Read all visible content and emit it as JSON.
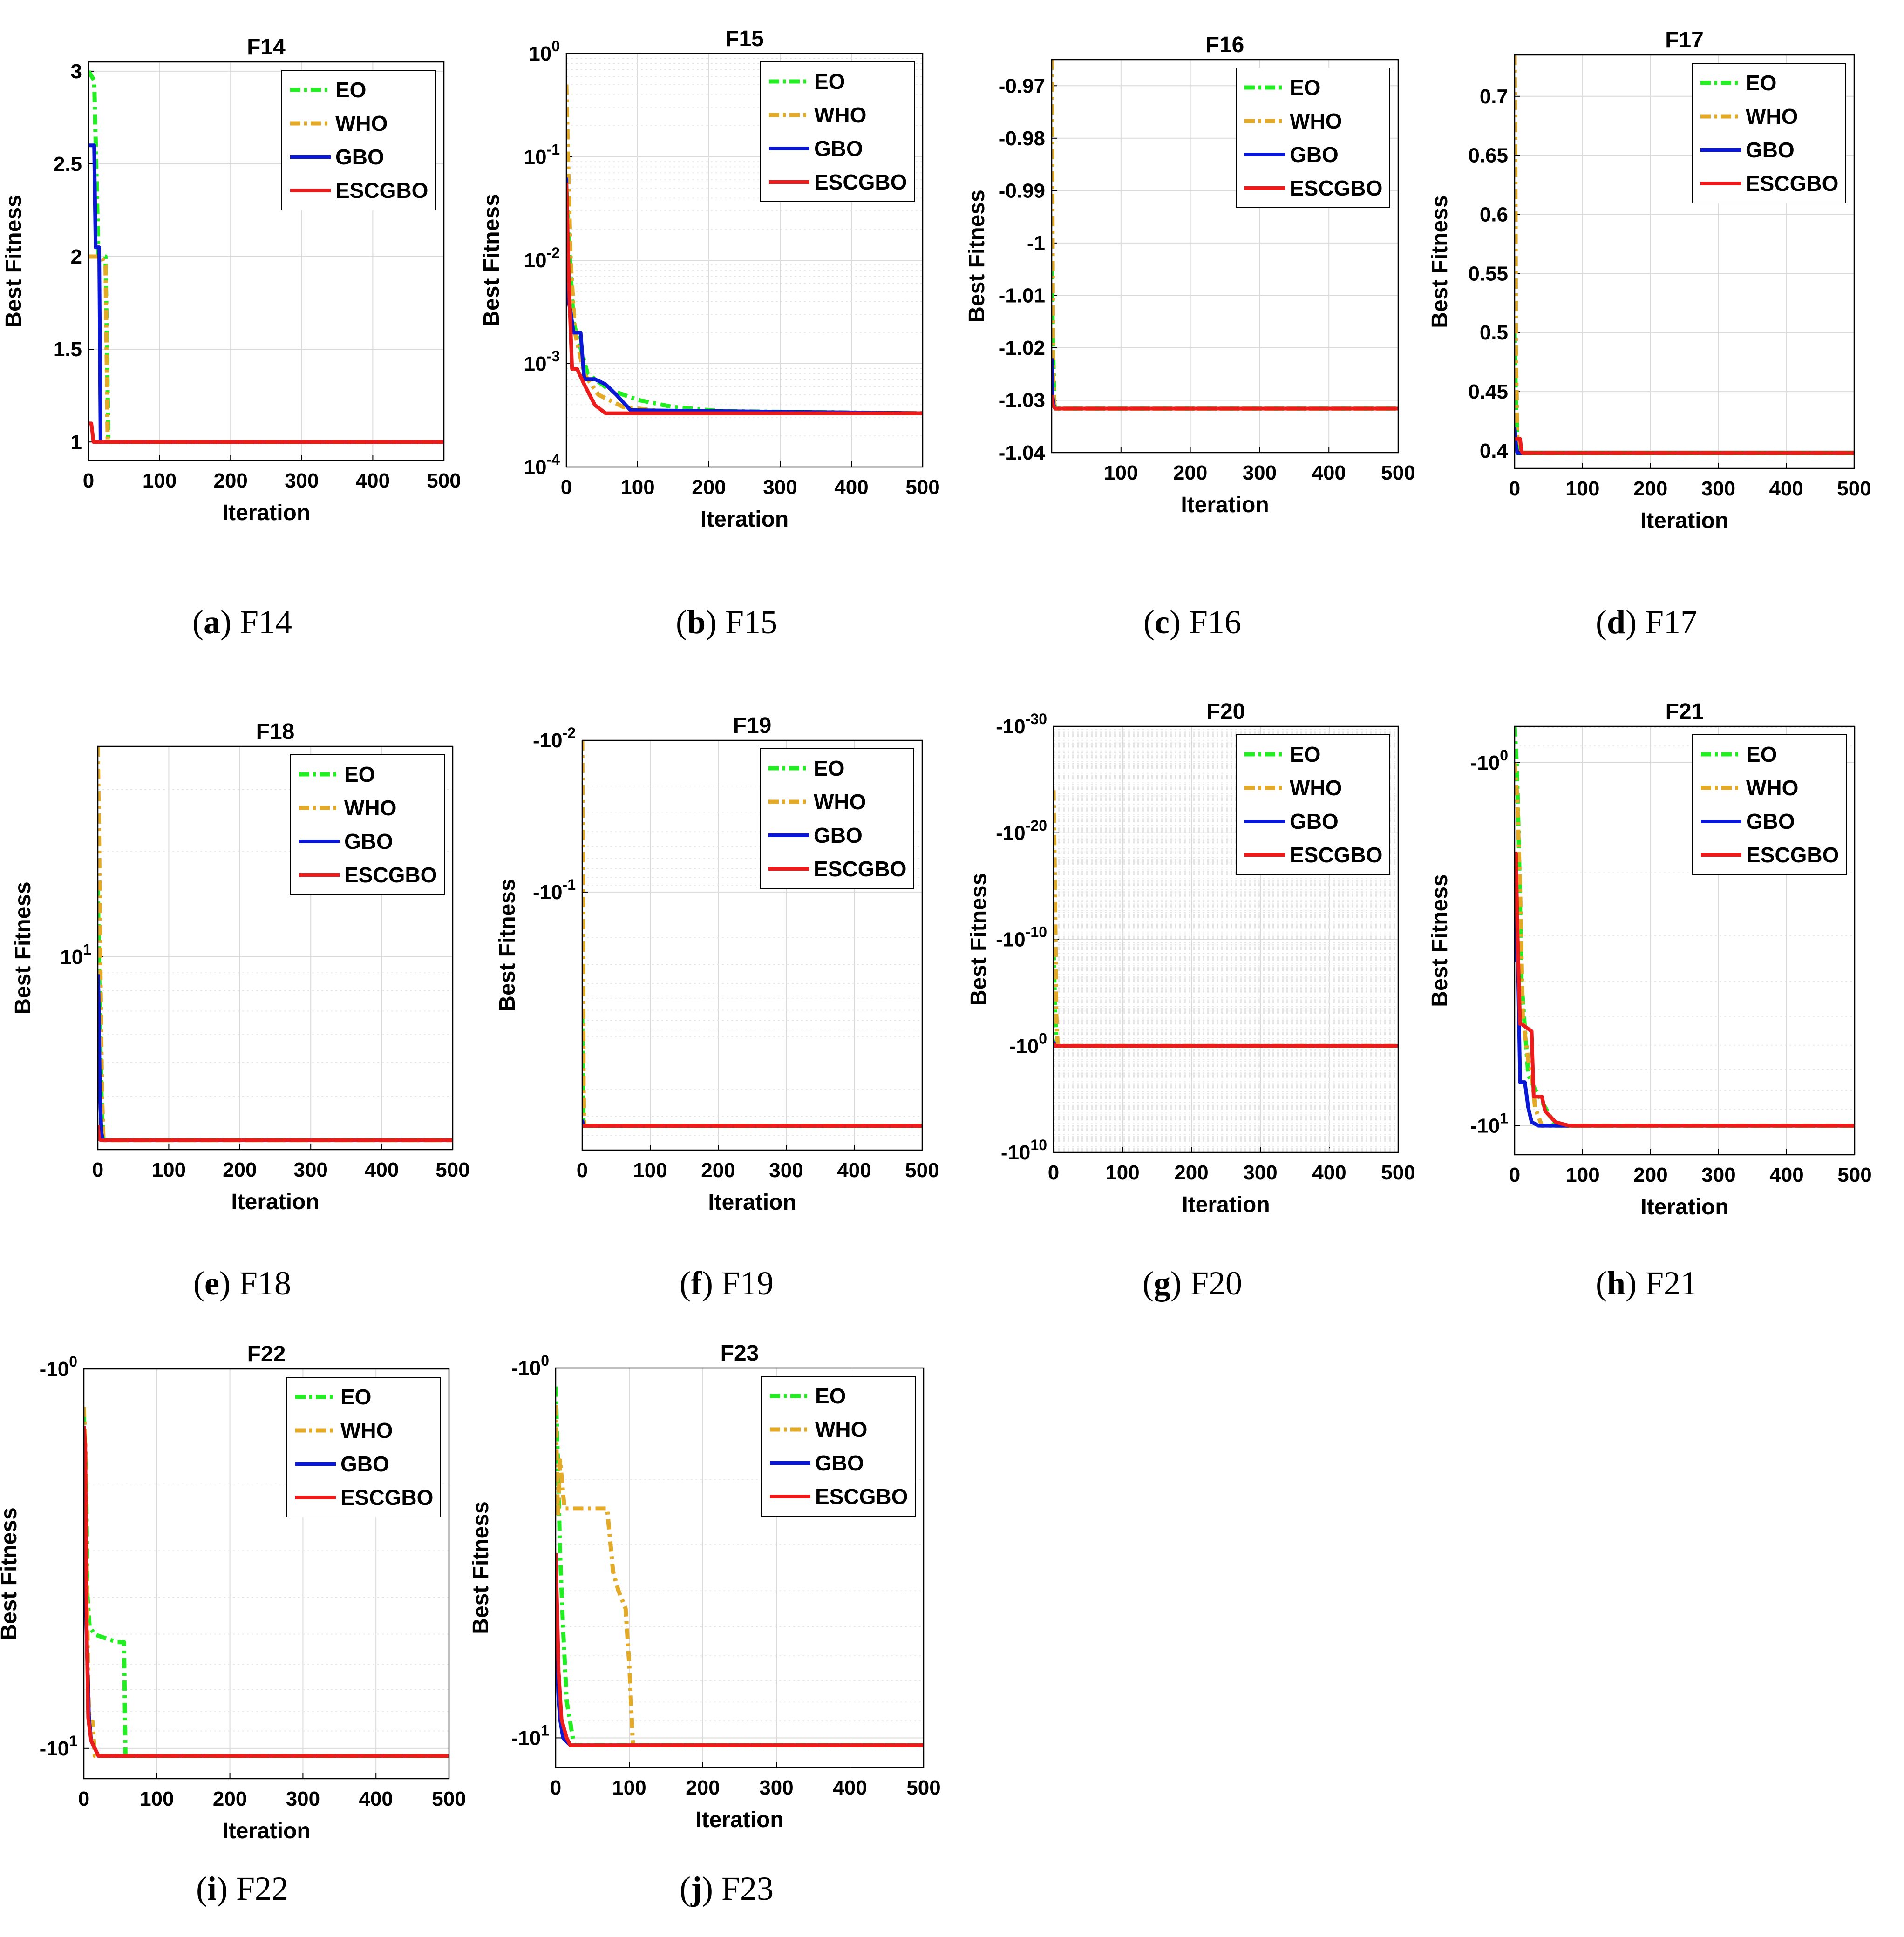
{
  "colors": {
    "EO": "#22ee22",
    "WHO": "#e3aa28",
    "GBO": "#0a18d6",
    "ESCGBO": "#ec1c1c"
  },
  "legend": [
    "EO",
    "WHO",
    "GBO",
    "ESCGBO"
  ],
  "xlabel": "Iteration",
  "ylabel": "Best Fitness",
  "chart_data": [
    {
      "id": "F14",
      "type": "line",
      "title": "F14",
      "caption_letter": "a",
      "caption_text": "F14",
      "xlim": [
        0,
        500
      ],
      "xticks": [
        "0",
        "100",
        "200",
        "300",
        "400",
        "500"
      ],
      "ylim": [
        0.9,
        3.05
      ],
      "yscale": "linear",
      "yticks": [
        {
          "v": 1,
          "label": "1"
        },
        {
          "v": 1.5,
          "label": "1.5"
        },
        {
          "v": 2,
          "label": "2"
        },
        {
          "v": 2.5,
          "label": "2.5"
        },
        {
          "v": 3,
          "label": "3"
        }
      ],
      "series": [
        {
          "name": "EO",
          "x": [
            0,
            8,
            14,
            24,
            28,
            500
          ],
          "y": [
            3.0,
            2.95,
            2.0,
            2.0,
            1.0,
            1.0
          ]
        },
        {
          "name": "WHO",
          "x": [
            0,
            18,
            24,
            27,
            500
          ],
          "y": [
            2.0,
            2.0,
            1.95,
            1.0,
            1.0
          ]
        },
        {
          "name": "GBO",
          "x": [
            0,
            8,
            10,
            15,
            17,
            500
          ],
          "y": [
            2.6,
            2.6,
            2.05,
            2.05,
            1.0,
            1.0
          ]
        },
        {
          "name": "ESCGBO",
          "x": [
            0,
            4,
            7,
            500
          ],
          "y": [
            1.1,
            1.1,
            1.0,
            1.0
          ]
        }
      ]
    },
    {
      "id": "F15",
      "type": "line",
      "title": "F15",
      "caption_letter": "b",
      "caption_text": "F15",
      "xlim": [
        0,
        500
      ],
      "xticks": [
        "0",
        "100",
        "200",
        "300",
        "400",
        "500"
      ],
      "ylim": [
        -4,
        0
      ],
      "yscale": "log10",
      "yticks": [
        {
          "v": 0,
          "label": "10^0"
        },
        {
          "v": -1,
          "label": "10^-1"
        },
        {
          "v": -2,
          "label": "10^-2"
        },
        {
          "v": -3,
          "label": "10^-3"
        },
        {
          "v": -4,
          "label": "10^-4"
        }
      ],
      "series": [
        {
          "name": "EO",
          "x": [
            0,
            5,
            10,
            30,
            60,
            100,
            150,
            220,
            500
          ],
          "y": [
            -1.3,
            -2.0,
            -2.6,
            -3.1,
            -3.25,
            -3.35,
            -3.42,
            -3.46,
            -3.48
          ]
        },
        {
          "name": "WHO",
          "x": [
            0,
            3,
            6,
            12,
            25,
            45,
            80,
            150,
            500
          ],
          "y": [
            -0.3,
            -1.2,
            -2.0,
            -2.7,
            -3.1,
            -3.3,
            -3.42,
            -3.47,
            -3.48
          ]
        },
        {
          "name": "GBO",
          "x": [
            0,
            3,
            6,
            10,
            20,
            25,
            40,
            55,
            70,
            90,
            500
          ],
          "y": [
            -1.2,
            -2.4,
            -2.5,
            -2.7,
            -2.7,
            -3.15,
            -3.15,
            -3.2,
            -3.3,
            -3.45,
            -3.48
          ]
        },
        {
          "name": "ESCGBO",
          "x": [
            0,
            4,
            8,
            15,
            25,
            40,
            55,
            500
          ],
          "y": [
            -1.25,
            -2.3,
            -3.05,
            -3.05,
            -3.2,
            -3.4,
            -3.48,
            -3.48
          ]
        }
      ]
    },
    {
      "id": "F16",
      "type": "line",
      "title": "F16",
      "caption_letter": "c",
      "caption_text": "F16",
      "xlim": [
        0,
        500
      ],
      "xticks": [
        "",
        "100",
        "200",
        "300",
        "400",
        "500"
      ],
      "ylim": [
        -1.04,
        -0.965
      ],
      "yscale": "linear",
      "yticks": [
        {
          "v": -0.97,
          "label": "-0.97"
        },
        {
          "v": -0.98,
          "label": "-0.98"
        },
        {
          "v": -0.99,
          "label": "-0.99"
        },
        {
          "v": -1.0,
          "label": "-1"
        },
        {
          "v": -1.01,
          "label": "-1.01"
        },
        {
          "v": -1.02,
          "label": "-1.02"
        },
        {
          "v": -1.03,
          "label": "-1.03"
        },
        {
          "v": -1.04,
          "label": "-1.04"
        }
      ],
      "series": [
        {
          "name": "EO",
          "x": [
            0,
            2,
            4,
            6,
            500
          ],
          "y": [
            -1.005,
            -1.02,
            -1.031,
            -1.0316,
            -1.0316
          ]
        },
        {
          "name": "WHO",
          "x": [
            0,
            1,
            2,
            4,
            500
          ],
          "y": [
            -0.965,
            -0.99,
            -1.025,
            -1.0316,
            -1.0316
          ]
        },
        {
          "name": "GBO",
          "x": [
            0,
            1,
            3,
            5,
            500
          ],
          "y": [
            -1.022,
            -1.029,
            -1.031,
            -1.0316,
            -1.0316
          ]
        },
        {
          "name": "ESCGBO",
          "x": [
            0,
            2,
            5,
            500
          ],
          "y": [
            -1.029,
            -1.031,
            -1.0316,
            -1.0316
          ]
        }
      ]
    },
    {
      "id": "F17",
      "type": "line",
      "title": "F17",
      "caption_letter": "d",
      "caption_text": "F17",
      "xlim": [
        0,
        500
      ],
      "xticks": [
        "0",
        "100",
        "200",
        "300",
        "400",
        "500"
      ],
      "ylim": [
        0.385,
        0.735
      ],
      "yscale": "linear",
      "yticks": [
        {
          "v": 0.4,
          "label": "0.4"
        },
        {
          "v": 0.45,
          "label": "0.45"
        },
        {
          "v": 0.5,
          "label": "0.5"
        },
        {
          "v": 0.55,
          "label": "0.55"
        },
        {
          "v": 0.6,
          "label": "0.6"
        },
        {
          "v": 0.65,
          "label": "0.65"
        },
        {
          "v": 0.7,
          "label": "0.7"
        }
      ],
      "series": [
        {
          "name": "EO",
          "x": [
            0,
            2,
            4,
            6,
            500
          ],
          "y": [
            0.5,
            0.44,
            0.41,
            0.398,
            0.398
          ]
        },
        {
          "name": "WHO",
          "x": [
            0,
            1,
            2,
            4,
            6,
            500
          ],
          "y": [
            0.735,
            0.65,
            0.48,
            0.41,
            0.398,
            0.398
          ]
        },
        {
          "name": "GBO",
          "x": [
            0,
            2,
            4,
            500
          ],
          "y": [
            0.42,
            0.405,
            0.398,
            0.398
          ]
        },
        {
          "name": "ESCGBO",
          "x": [
            0,
            8,
            10,
            12,
            500
          ],
          "y": [
            0.41,
            0.41,
            0.4,
            0.398,
            0.398
          ]
        }
      ]
    },
    {
      "id": "F18",
      "type": "line",
      "title": "F18",
      "caption_letter": "e",
      "caption_text": "F18",
      "xlim": [
        0,
        500
      ],
      "xticks": [
        "0",
        "100",
        "200",
        "300",
        "400",
        "500"
      ],
      "ylim": [
        0.45,
        1.6
      ],
      "yscale": "log10",
      "yticks": [
        {
          "v": 1,
          "label": "10^1"
        }
      ],
      "series": [
        {
          "name": "EO",
          "x": [
            0,
            2,
            4,
            6,
            8,
            500
          ],
          "y": [
            1.2,
            0.95,
            0.7,
            0.55,
            0.477,
            0.477
          ]
        },
        {
          "name": "WHO",
          "x": [
            0,
            2,
            4,
            6,
            8,
            500
          ],
          "y": [
            1.6,
            1.3,
            0.9,
            0.6,
            0.477,
            0.477
          ]
        },
        {
          "name": "GBO",
          "x": [
            0,
            1,
            3,
            5,
            7,
            500
          ],
          "y": [
            0.95,
            0.9,
            0.6,
            0.5,
            0.477,
            0.477
          ]
        },
        {
          "name": "ESCGBO",
          "x": [
            0,
            2,
            4,
            500
          ],
          "y": [
            0.52,
            0.48,
            0.477,
            0.477
          ]
        }
      ]
    },
    {
      "id": "F19",
      "type": "line",
      "title": "F19",
      "caption_letter": "f",
      "caption_text": "F19",
      "xlim": [
        0,
        500
      ],
      "xticks": [
        "0",
        "100",
        "200",
        "300",
        "400",
        "500"
      ],
      "ylim": [
        -2,
        0.7
      ],
      "yscale": "log10-neg",
      "yticks": [
        {
          "v": -2,
          "label": "-10^-2"
        },
        {
          "v": -1,
          "label": "-10^-1"
        }
      ],
      "series": [
        {
          "name": "EO",
          "x": [
            0,
            1,
            2,
            500
          ],
          "y": [
            -0.2,
            0.3,
            0.54,
            0.54
          ]
        },
        {
          "name": "WHO",
          "x": [
            0,
            1,
            2,
            3,
            500
          ],
          "y": [
            -2,
            -1.2,
            0.3,
            0.54,
            0.54
          ]
        },
        {
          "name": "GBO",
          "x": [
            0,
            1,
            2,
            500
          ],
          "y": [
            0.5,
            0.53,
            0.54,
            0.54
          ]
        },
        {
          "name": "ESCGBO",
          "x": [
            0,
            2,
            500
          ],
          "y": [
            0.54,
            0.54,
            0.54
          ]
        }
      ]
    },
    {
      "id": "F20",
      "type": "line",
      "title": "F20",
      "caption_letter": "g",
      "caption_text": "F20",
      "xlim": [
        0,
        500
      ],
      "xticks": [
        "0",
        "100",
        "200",
        "300",
        "400",
        "500"
      ],
      "ylim": [
        -30,
        10
      ],
      "yscale": "log10-neg",
      "yticks": [
        {
          "v": -30,
          "label": "-10^-30"
        },
        {
          "v": -20,
          "label": "-10^-20"
        },
        {
          "v": -10,
          "label": "-10^-10"
        },
        {
          "v": 0,
          "label": "-10^0"
        },
        {
          "v": 10,
          "label": "-10^10"
        }
      ],
      "series": [
        {
          "name": "EO",
          "x": [
            0,
            2,
            4,
            6,
            500
          ],
          "y": [
            -9,
            -4,
            -0.5,
            0,
            0
          ]
        },
        {
          "name": "WHO",
          "x": [
            0,
            2,
            4,
            6,
            500
          ],
          "y": [
            -24,
            -15,
            -3,
            0,
            0
          ]
        },
        {
          "name": "GBO",
          "x": [
            0,
            2,
            500
          ],
          "y": [
            -0.4,
            0,
            0
          ]
        },
        {
          "name": "ESCGBO",
          "x": [
            0,
            3,
            500
          ],
          "y": [
            -0.2,
            0,
            0
          ]
        }
      ]
    },
    {
      "id": "F21",
      "type": "line",
      "title": "F21",
      "caption_letter": "h",
      "caption_text": "F21",
      "xlim": [
        0,
        500
      ],
      "xticks": [
        "0",
        "100",
        "200",
        "300",
        "400",
        "500"
      ],
      "ylim": [
        -0.1,
        1.08
      ],
      "yscale": "log10-neg",
      "yticks": [
        {
          "v": 0,
          "label": "-10^0"
        },
        {
          "v": 1,
          "label": "-10^1"
        }
      ],
      "series": [
        {
          "name": "EO",
          "x": [
            0,
            3,
            6,
            10,
            20,
            30,
            45,
            60,
            500
          ],
          "y": [
            -0.1,
            0.0,
            0.2,
            0.6,
            0.86,
            0.9,
            0.95,
            1.0,
            1.0
          ]
        },
        {
          "name": "WHO",
          "x": [
            0,
            4,
            8,
            12,
            20,
            25,
            30,
            40,
            500
          ],
          "y": [
            0.0,
            0.1,
            0.35,
            0.7,
            0.82,
            0.85,
            0.95,
            1.0,
            1.0
          ]
        },
        {
          "name": "GBO",
          "x": [
            0,
            2,
            5,
            8,
            15,
            20,
            25,
            35,
            500
          ],
          "y": [
            0.55,
            0.35,
            0.55,
            0.88,
            0.88,
            0.95,
            0.99,
            1.0,
            1.0
          ]
        },
        {
          "name": "ESCGBO",
          "x": [
            0,
            2,
            4,
            8,
            10,
            25,
            28,
            40,
            45,
            60,
            80,
            500
          ],
          "y": [
            0.35,
            0.25,
            0.45,
            0.72,
            0.72,
            0.74,
            0.92,
            0.92,
            0.96,
            0.99,
            1.0,
            1.0
          ]
        }
      ]
    },
    {
      "id": "F22",
      "type": "line",
      "title": "F22",
      "caption_letter": "i",
      "caption_text": "F22",
      "xlim": [
        0,
        500
      ],
      "xticks": [
        "0",
        "100",
        "200",
        "300",
        "400",
        "500"
      ],
      "ylim": [
        0,
        1.08
      ],
      "yscale": "log10-neg",
      "yticks": [
        {
          "v": 0,
          "label": "-10^0"
        },
        {
          "v": 1,
          "label": "-10^1"
        }
      ],
      "series": [
        {
          "name": "EO",
          "x": [
            0,
            3,
            5,
            8,
            15,
            30,
            45,
            55,
            57,
            500
          ],
          "y": [
            0.12,
            0.25,
            0.6,
            0.68,
            0.7,
            0.71,
            0.72,
            0.72,
            1.02,
            1.02
          ]
        },
        {
          "name": "WHO",
          "x": [
            0,
            2,
            4,
            6,
            8,
            12,
            15,
            500
          ],
          "y": [
            0.1,
            0.2,
            0.55,
            0.85,
            0.93,
            0.93,
            1.02,
            1.02
          ]
        },
        {
          "name": "GBO",
          "x": [
            0,
            2,
            4,
            7,
            10,
            20,
            500
          ],
          "y": [
            0.3,
            0.55,
            0.72,
            0.92,
            0.98,
            1.02,
            1.02
          ]
        },
        {
          "name": "ESCGBO",
          "x": [
            0,
            2,
            4,
            6,
            8,
            10,
            20,
            500
          ],
          "y": [
            0.15,
            0.2,
            0.7,
            0.92,
            0.95,
            0.98,
            1.02,
            1.02
          ]
        }
      ]
    },
    {
      "id": "F23",
      "type": "line",
      "title": "F23",
      "caption_letter": "j",
      "caption_text": "F23",
      "xlim": [
        0,
        500
      ],
      "xticks": [
        "0",
        "100",
        "200",
        "300",
        "400",
        "500"
      ],
      "ylim": [
        0,
        1.08
      ],
      "yscale": "log10-neg",
      "yticks": [
        {
          "v": 0,
          "label": "-10^0"
        },
        {
          "v": 1,
          "label": "-10^1"
        }
      ],
      "series": [
        {
          "name": "EO",
          "x": [
            0,
            3,
            6,
            10,
            15,
            25,
            500
          ],
          "y": [
            0.05,
            0.25,
            0.5,
            0.7,
            0.9,
            1.02,
            1.02
          ]
        },
        {
          "name": "WHO",
          "x": [
            0,
            3,
            6,
            12,
            70,
            78,
            85,
            95,
            100,
            105,
            500
          ],
          "y": [
            0.1,
            0.4,
            0.25,
            0.38,
            0.38,
            0.55,
            0.6,
            0.65,
            0.8,
            1.02,
            1.02
          ]
        },
        {
          "name": "GBO",
          "x": [
            0,
            2,
            4,
            6,
            10,
            20,
            500
          ],
          "y": [
            0.6,
            0.8,
            0.9,
            0.95,
            1.0,
            1.02,
            1.02
          ]
        },
        {
          "name": "ESCGBO",
          "x": [
            0,
            2,
            4,
            8,
            15,
            20,
            500
          ],
          "y": [
            0.5,
            0.65,
            0.82,
            0.95,
            1.0,
            1.02,
            1.02
          ]
        }
      ]
    }
  ]
}
